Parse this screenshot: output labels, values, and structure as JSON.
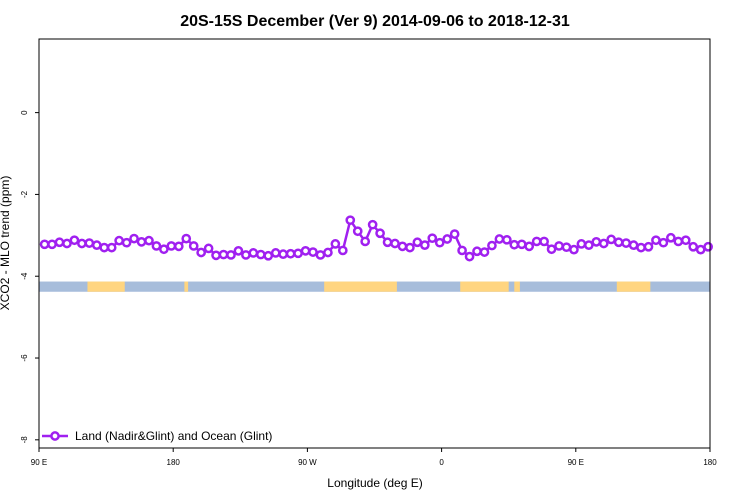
{
  "chart_data": {
    "type": "line",
    "title": "20S-15S December (Ver 9)   2014-09-06 to 2018-12-31",
    "xlabel": "Longitude (deg E)",
    "ylabel": "XCO2 - MLO trend (ppm)",
    "xlim": [
      90,
      450
    ],
    "ylim": [
      -8.2,
      1.8
    ],
    "x_ticks": [
      {
        "value": 90,
        "label": "90 E"
      },
      {
        "value": 162,
        "label": "180"
      },
      {
        "value": 234,
        "label": "90 W"
      },
      {
        "value": 306,
        "label": "0"
      },
      {
        "value": 378,
        "label": "90 E"
      },
      {
        "value": 450,
        "label": "180"
      }
    ],
    "y_ticks": [
      {
        "value": 0,
        "label": "0"
      },
      {
        "value": -2,
        "label": "-2"
      },
      {
        "value": -4,
        "label": "-4"
      },
      {
        "value": -6,
        "label": "-6"
      },
      {
        "value": -8,
        "label": "-8"
      }
    ],
    "grid": false,
    "legend": {
      "position": "bottom-left",
      "entries": [
        "Land (Nadir&Glint) and Ocean (Glint)"
      ]
    },
    "series": [
      {
        "name": "Land (Nadir&Glint) and Ocean (Glint)",
        "color": "#a020f0",
        "marker": "open-circle",
        "x": [
          93,
          97,
          101,
          105,
          109,
          113,
          117,
          121,
          125,
          129,
          133,
          137,
          141,
          145,
          149,
          153,
          157,
          161,
          165,
          169,
          173,
          177,
          181,
          185,
          189,
          193,
          197,
          201,
          205,
          209,
          213,
          217,
          221,
          225,
          229,
          233,
          237,
          241,
          245,
          249,
          253,
          257,
          261,
          265,
          269,
          273,
          277,
          281,
          285,
          289,
          293,
          297,
          301,
          305,
          309,
          313,
          317,
          321,
          325,
          329,
          333,
          337,
          341,
          345,
          349,
          353,
          357,
          361,
          365,
          369,
          373,
          377,
          381,
          385,
          389,
          393,
          397,
          401,
          405,
          409,
          413,
          417,
          421,
          425,
          429,
          433,
          437,
          441,
          445,
          449
        ],
        "y": [
          -3.22,
          -3.22,
          -3.17,
          -3.2,
          -3.12,
          -3.2,
          -3.19,
          -3.24,
          -3.3,
          -3.3,
          -3.13,
          -3.18,
          -3.08,
          -3.16,
          -3.13,
          -3.26,
          -3.34,
          -3.26,
          -3.27,
          -3.08,
          -3.26,
          -3.42,
          -3.32,
          -3.49,
          -3.47,
          -3.48,
          -3.38,
          -3.48,
          -3.43,
          -3.47,
          -3.5,
          -3.43,
          -3.46,
          -3.45,
          -3.44,
          -3.38,
          -3.41,
          -3.48,
          -3.42,
          -3.21,
          -3.37,
          -2.63,
          -2.9,
          -3.15,
          -2.74,
          -2.95,
          -3.17,
          -3.2,
          -3.27,
          -3.3,
          -3.17,
          -3.24,
          -3.07,
          -3.18,
          -3.09,
          -2.97,
          -3.37,
          -3.52,
          -3.39,
          -3.41,
          -3.25,
          -3.09,
          -3.11,
          -3.23,
          -3.22,
          -3.27,
          -3.15,
          -3.15,
          -3.34,
          -3.26,
          -3.29,
          -3.35,
          -3.21,
          -3.24,
          -3.16,
          -3.2,
          -3.1,
          -3.17,
          -3.19,
          -3.24,
          -3.3,
          -3.28,
          -3.12,
          -3.18,
          -3.06,
          -3.15,
          -3.12,
          -3.28,
          -3.35,
          -3.28
        ]
      }
    ],
    "coverage_band": {
      "y_range": [
        -4.38,
        -4.13
      ],
      "base_color": "#a7bddb",
      "land_color": "#ffd580",
      "land_x_ranges": [
        [
          116,
          136
        ],
        [
          168,
          170
        ],
        [
          243,
          282
        ],
        [
          316,
          342
        ],
        [
          345,
          348
        ],
        [
          400,
          418
        ]
      ]
    }
  }
}
